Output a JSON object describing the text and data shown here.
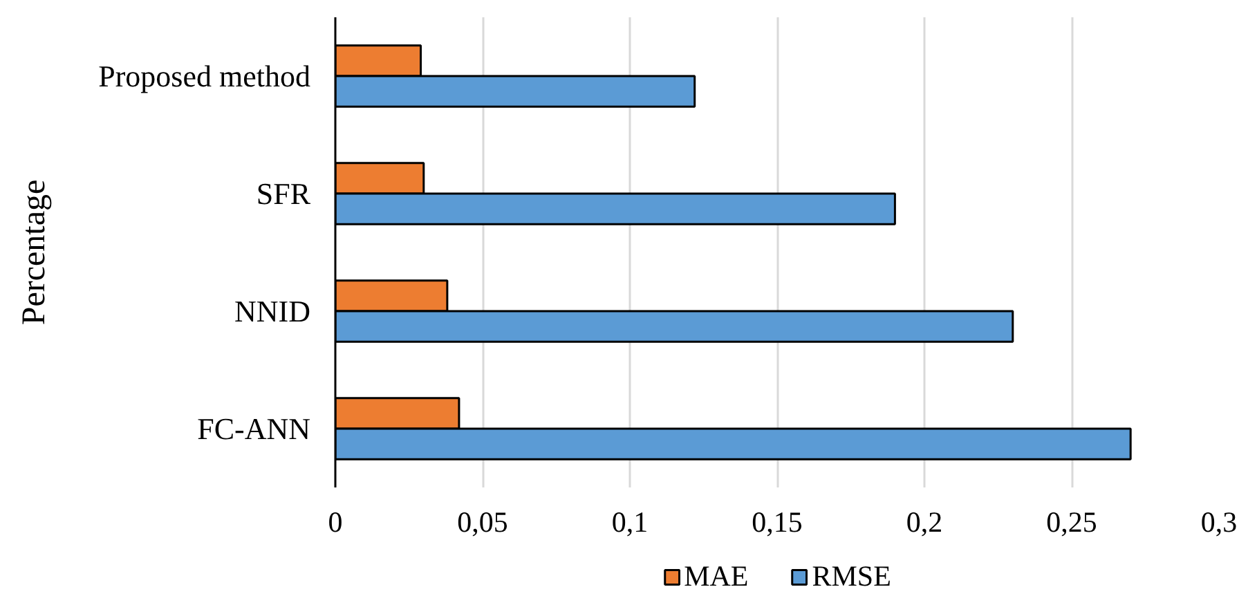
{
  "chart_data": {
    "type": "bar",
    "orientation": "horizontal",
    "ylabel": "Percentage",
    "categories": [
      "Proposed method",
      "SFR",
      "NNID",
      "FC-ANN"
    ],
    "series": [
      {
        "name": "MAE",
        "color": "#ed7d31",
        "values": [
          0.029,
          0.03,
          0.038,
          0.042
        ]
      },
      {
        "name": "RMSE",
        "color": "#5b9bd5",
        "values": [
          0.122,
          0.19,
          0.23,
          0.27
        ]
      }
    ],
    "xlim": [
      0,
      0.3
    ],
    "xticks": [
      0,
      {
        "value": 0.05,
        "label": "0,05"
      },
      {
        "value": 0.1,
        "label": "0,1"
      },
      {
        "value": 0.15,
        "label": "0,15"
      },
      {
        "value": 0.2,
        "label": "0,2"
      },
      {
        "value": 0.25,
        "label": "0,25"
      },
      {
        "value": 0.3,
        "label": "0,3"
      }
    ],
    "grid": "x",
    "legend": "bottom"
  }
}
